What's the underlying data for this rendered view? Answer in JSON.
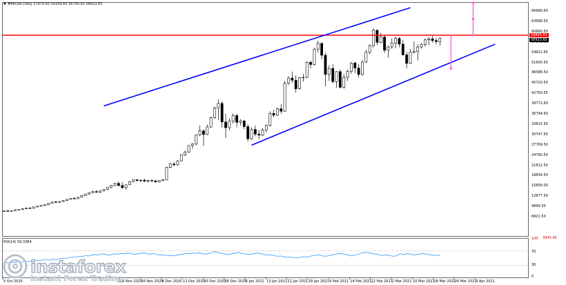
{
  "header": {
    "symbol_icon": "dropdown-triangle-icon",
    "info": "#Bitcoin,Daily  57979.65 59189.65 56790.65 58923.65"
  },
  "rsi_panel": {
    "label": "RSI(14) 59.3384",
    "levels": [
      "70",
      "30"
    ],
    "scale_top": "100",
    "scale_bottom": "0",
    "values": [
      38,
      37,
      38,
      37,
      39,
      38,
      40,
      41,
      40,
      42,
      44,
      43,
      45,
      46,
      44,
      47,
      45,
      48,
      50,
      49,
      51,
      53,
      52,
      55,
      54,
      57,
      56,
      58,
      60,
      59,
      62,
      61,
      58,
      60,
      62,
      61,
      63,
      62,
      64,
      63,
      60,
      62,
      63,
      65,
      62,
      61,
      63,
      60,
      58,
      59,
      57,
      58,
      56,
      58,
      60,
      61,
      63,
      62,
      64,
      63,
      65,
      62,
      61,
      63,
      66,
      68,
      65,
      63,
      61,
      60,
      62,
      64,
      66,
      63,
      62,
      60,
      61,
      63,
      64,
      62,
      60,
      58,
      59,
      57,
      55,
      56,
      54,
      52,
      53,
      51,
      50,
      52,
      54,
      53,
      55,
      57,
      59,
      58,
      56,
      55,
      57,
      59,
      61,
      63,
      62,
      60,
      58,
      56,
      59,
      61,
      64,
      66,
      65,
      63,
      61,
      60,
      57,
      58,
      59,
      56,
      55,
      58,
      62,
      60,
      63,
      61,
      59,
      60,
      62,
      63,
      61,
      59,
      58,
      57,
      59
    ]
  },
  "price_axis": {
    "labels": [
      "66666.60",
      "63688.50",
      "60660.50",
      "57641.60",
      "54622.65",
      "51605.50",
      "48588.50",
      "45720.50",
      "42750.55",
      "39772.60",
      "36794.60",
      "33815.50",
      "30747.50",
      "27769.50",
      "24790.50",
      "21812.50",
      "18834.50",
      "15856.00",
      "12877.50",
      "9899.50",
      "6921.50",
      "3943.95"
    ],
    "current_price_tag": "58923.65",
    "resistance_tag": "59805.81",
    "current_price_color": "#000000",
    "resistance_color": "#ff0000"
  },
  "time_axis": {
    "labels": [
      "5 Oct 2020",
      "16 Nov 2020",
      "26 Nov 2020",
      "4 Dec 2020",
      "12 Dec 2020",
      "20 Dec 2020",
      "28 Dec 2020",
      "5 Jan 2021",
      "13 Jan 2021",
      "21 Jan 2021",
      "29 Jan 2021",
      "6 Feb 2021",
      "14 Feb 2021",
      "22 Feb 2021",
      "2 Mar 2021",
      "10 Mar 2021",
      "18 Mar 2021",
      "26 Mar 2021",
      "3 Apr 2021"
    ]
  },
  "chart_data": {
    "type": "candlestick",
    "series_colors": {
      "bull": "#000000",
      "bear": "#000000",
      "channel": "#0000ff",
      "resistance": "#ff0000",
      "projection": "#ff66cc",
      "rsi": "#3399ff"
    },
    "ohlc": [
      [
        10500,
        10700,
        10400,
        10600
      ],
      [
        10600,
        10800,
        10500,
        10550
      ],
      [
        10550,
        10700,
        10450,
        10650
      ],
      [
        10650,
        11000,
        10600,
        10900
      ],
      [
        10900,
        11100,
        10800,
        11000
      ],
      [
        11000,
        11300,
        10900,
        11200
      ],
      [
        11200,
        11500,
        11100,
        11400
      ],
      [
        11400,
        11600,
        11200,
        11300
      ],
      [
        11300,
        11800,
        11250,
        11700
      ],
      [
        11700,
        12000,
        11600,
        11900
      ],
      [
        11900,
        12200,
        11800,
        12100
      ],
      [
        12100,
        12400,
        12000,
        12300
      ],
      [
        12300,
        12800,
        12200,
        12700
      ],
      [
        12700,
        13200,
        12600,
        13100
      ],
      [
        13100,
        13400,
        12900,
        13000
      ],
      [
        13000,
        13300,
        12900,
        13200
      ],
      [
        13200,
        13600,
        13100,
        13500
      ],
      [
        13500,
        13900,
        13400,
        13800
      ],
      [
        13800,
        14200,
        13700,
        14100
      ],
      [
        14100,
        14400,
        13900,
        14000
      ],
      [
        14000,
        14500,
        13900,
        14400
      ],
      [
        14400,
        15000,
        14300,
        14900
      ],
      [
        14900,
        15400,
        14800,
        15300
      ],
      [
        15300,
        15800,
        15200,
        15700
      ],
      [
        15700,
        16200,
        15500,
        16000
      ],
      [
        16000,
        16400,
        15700,
        15800
      ],
      [
        15800,
        16300,
        15600,
        16200
      ],
      [
        16200,
        16700,
        16000,
        16600
      ],
      [
        16600,
        17300,
        16400,
        17200
      ],
      [
        17200,
        17800,
        17000,
        17700
      ],
      [
        17700,
        18400,
        17500,
        18300
      ],
      [
        18300,
        18800,
        17400,
        17700
      ],
      [
        17700,
        18600,
        16800,
        17100
      ],
      [
        17100,
        18000,
        16500,
        17900
      ],
      [
        17900,
        18900,
        17800,
        18800
      ],
      [
        18800,
        19400,
        18600,
        19300
      ],
      [
        19300,
        19500,
        18800,
        19100
      ],
      [
        19100,
        19400,
        18600,
        19200
      ],
      [
        19200,
        19600,
        18700,
        18900
      ],
      [
        18900,
        19300,
        18500,
        19100
      ],
      [
        19100,
        19400,
        18800,
        19000
      ],
      [
        19000,
        19300,
        18500,
        18700
      ],
      [
        18700,
        19200,
        18500,
        19100
      ],
      [
        19100,
        19500,
        18900,
        19300
      ],
      [
        19300,
        23000,
        19200,
        22800
      ],
      [
        22800,
        24000,
        22500,
        23700
      ],
      [
        23700,
        24300,
        23100,
        23500
      ],
      [
        23500,
        24800,
        23300,
        24600
      ],
      [
        24600,
        26500,
        24500,
        26300
      ],
      [
        26300,
        27500,
        26000,
        27100
      ],
      [
        27100,
        29000,
        26800,
        28900
      ],
      [
        28900,
        29600,
        28000,
        29300
      ],
      [
        29300,
        32000,
        29000,
        31900
      ],
      [
        31900,
        34500,
        31500,
        33000
      ],
      [
        33000,
        33500,
        28800,
        32000
      ],
      [
        32000,
        34800,
        31800,
        34100
      ],
      [
        34100,
        37000,
        33800,
        36700
      ],
      [
        36700,
        39800,
        36400,
        39400
      ],
      [
        39400,
        41900,
        36000,
        40700
      ],
      [
        40700,
        41300,
        34000,
        35500
      ],
      [
        35500,
        37800,
        31000,
        33900
      ],
      [
        33900,
        36500,
        33200,
        35700
      ],
      [
        35700,
        37900,
        35000,
        37300
      ],
      [
        37300,
        37800,
        34000,
        35400
      ],
      [
        35400,
        36300,
        34500,
        35800
      ],
      [
        35800,
        36100,
        33500,
        34200
      ],
      [
        34200,
        34900,
        30000,
        30800
      ],
      [
        30800,
        34000,
        30500,
        33400
      ],
      [
        33400,
        34500,
        31500,
        32100
      ],
      [
        32100,
        33300,
        30700,
        31800
      ],
      [
        31800,
        33800,
        31500,
        33200
      ],
      [
        33200,
        34900,
        32600,
        34500
      ],
      [
        34500,
        38500,
        34200,
        37900
      ],
      [
        37900,
        38900,
        36800,
        37400
      ],
      [
        37400,
        39500,
        37200,
        39200
      ],
      [
        39200,
        40500,
        37800,
        38500
      ],
      [
        38500,
        47000,
        38300,
        46400
      ],
      [
        46400,
        48300,
        45800,
        47800
      ],
      [
        47800,
        49600,
        46400,
        47200
      ],
      [
        47200,
        48500,
        43700,
        44800
      ],
      [
        44800,
        48100,
        44500,
        47900
      ],
      [
        47900,
        49000,
        46800,
        48000
      ],
      [
        48000,
        52500,
        47700,
        52200
      ],
      [
        52200,
        52700,
        50500,
        51600
      ],
      [
        51600,
        56300,
        51300,
        55900
      ],
      [
        55900,
        58300,
        55000,
        57500
      ],
      [
        57500,
        57800,
        53100,
        54200
      ],
      [
        54200,
        54900,
        45500,
        48800
      ],
      [
        48800,
        51400,
        47000,
        50500
      ],
      [
        50500,
        51700,
        46300,
        46800
      ],
      [
        46800,
        49700,
        45100,
        49600
      ],
      [
        49600,
        50200,
        44900,
        45200
      ],
      [
        45200,
        48900,
        44800,
        48000
      ],
      [
        48000,
        50200,
        47000,
        49700
      ],
      [
        49700,
        52300,
        49000,
        52000
      ],
      [
        52000,
        52400,
        49200,
        50600
      ],
      [
        50600,
        51700,
        48000,
        48800
      ],
      [
        48800,
        52800,
        48500,
        52300
      ],
      [
        52300,
        55700,
        52000,
        55000
      ],
      [
        55000,
        57300,
        54500,
        56900
      ],
      [
        56900,
        61700,
        56300,
        61200
      ],
      [
        61200,
        61400,
        57000,
        57800
      ],
      [
        57800,
        60500,
        57500,
        59300
      ],
      [
        59300,
        60000,
        54800,
        55600
      ],
      [
        55600,
        56900,
        53500,
        56500
      ],
      [
        56500,
        58900,
        56000,
        57600
      ],
      [
        57600,
        59400,
        56100,
        58900
      ],
      [
        58900,
        59300,
        56400,
        57300
      ],
      [
        57300,
        58500,
        54100,
        54300
      ],
      [
        54300,
        55100,
        50500,
        51900
      ],
      [
        51900,
        55900,
        51700,
        55000
      ],
      [
        55000,
        58100,
        54700,
        55200
      ],
      [
        55200,
        57200,
        52700,
        56500
      ],
      [
        56500,
        57600,
        56000,
        57200
      ],
      [
        57200,
        58800,
        56600,
        58500
      ],
      [
        58500,
        59300,
        57000,
        58800
      ],
      [
        58800,
        59600,
        57700,
        58300
      ],
      [
        58300,
        59100,
        57200,
        58000
      ],
      [
        58000,
        59200,
        56800,
        58900
      ]
    ],
    "channel_upper": {
      "from": [
        27,
        40000
      ],
      "to": [
        110,
        67500
      ]
    },
    "channel_lower": {
      "from": [
        67,
        29000
      ],
      "to": [
        133,
        57300
      ]
    },
    "resistance_level": 59805.81,
    "projection_up": {
      "x": 127,
      "from": 59805.81,
      "to": 71000
    },
    "projection_down": {
      "x": 121,
      "from": 59805.81,
      "to": 50500
    },
    "ylim": [
      3943.95,
      68500
    ]
  },
  "branding": {
    "logo_icon": "instaforex-logo-icon",
    "name": "instaforex",
    "tagline": "Instant Forex Trading"
  }
}
